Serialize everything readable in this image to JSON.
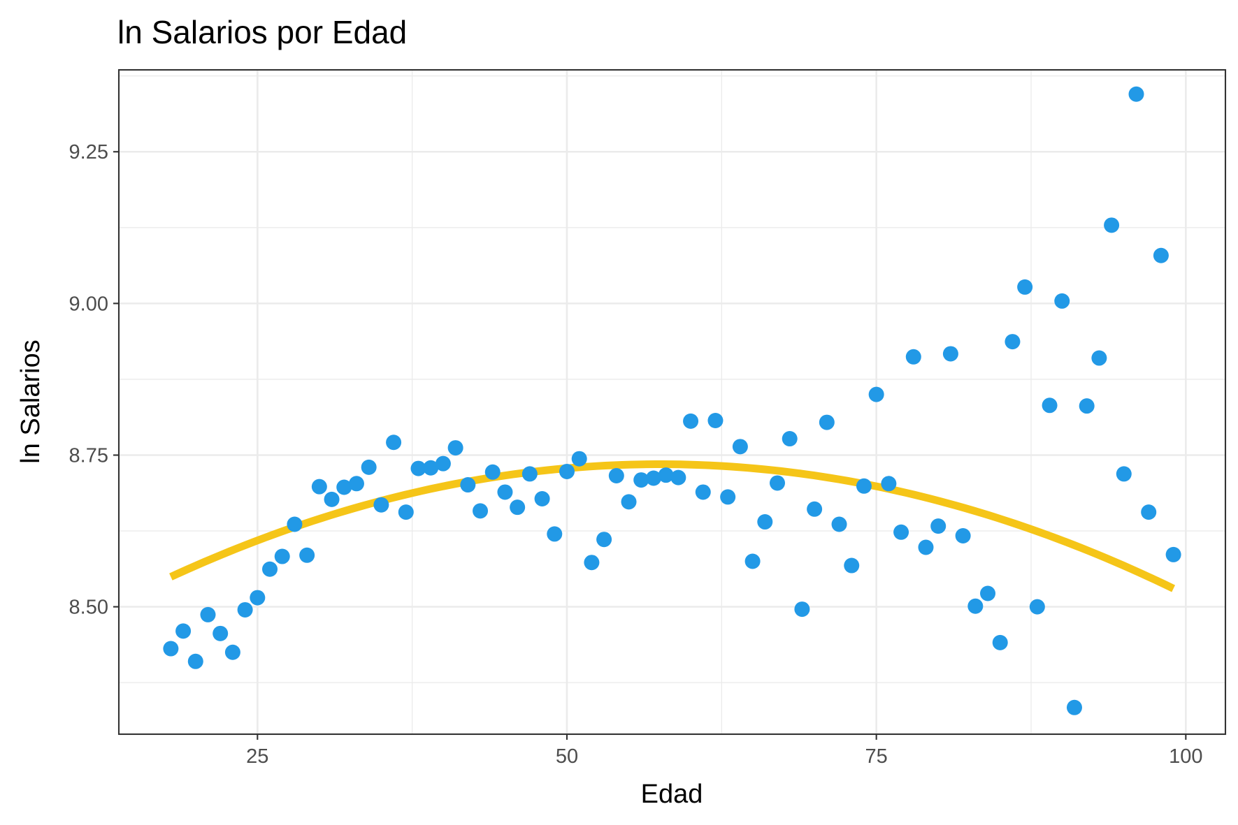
{
  "chart_data": {
    "type": "scatter",
    "title": "ln Salarios por Edad",
    "xlabel": "Edad",
    "ylabel": "ln Salarios",
    "xlim": [
      13.8,
      103.2
    ],
    "ylim": [
      8.29,
      9.385
    ],
    "xticks": [
      25,
      50,
      75,
      100
    ],
    "xtick_labels": [
      "25",
      "50",
      "75",
      "100"
    ],
    "yticks": [
      8.5,
      8.75,
      9.0,
      9.25
    ],
    "ytick_labels": [
      "8.50",
      "8.75",
      "9.00",
      "9.25"
    ],
    "grid": true,
    "colors": {
      "points": "#2299e6",
      "curve": "#f5c518"
    },
    "series": [
      {
        "type": "scatter",
        "x": [
          18,
          19,
          20,
          21,
          22,
          23,
          24,
          25,
          26,
          27,
          28,
          29,
          30,
          31,
          32,
          33,
          34,
          35,
          36,
          37,
          38,
          39,
          40,
          41,
          42,
          43,
          44,
          45,
          46,
          47,
          48,
          49,
          50,
          51,
          52,
          53,
          54,
          55,
          56,
          57,
          58,
          59,
          60,
          61,
          62,
          63,
          64,
          65,
          66,
          67,
          68,
          69,
          70,
          71,
          72,
          73,
          74,
          75,
          76,
          77,
          78,
          79,
          80,
          81,
          82,
          83,
          84,
          85,
          86,
          87,
          88,
          89,
          90,
          91,
          92,
          93,
          94,
          95,
          96,
          97,
          98,
          99
        ],
        "y": [
          8.431,
          8.46,
          8.41,
          8.487,
          8.456,
          8.425,
          8.495,
          8.515,
          8.562,
          8.583,
          8.636,
          8.585,
          8.698,
          8.677,
          8.697,
          8.703,
          8.73,
          8.668,
          8.771,
          8.656,
          8.728,
          8.729,
          8.736,
          8.762,
          8.701,
          8.658,
          8.722,
          8.689,
          8.664,
          8.719,
          8.678,
          8.62,
          8.723,
          8.744,
          8.573,
          8.611,
          8.716,
          8.673,
          8.709,
          8.712,
          8.717,
          8.713,
          8.806,
          8.689,
          8.807,
          8.681,
          8.764,
          8.575,
          8.64,
          8.704,
          8.777,
          8.496,
          8.661,
          8.804,
          8.636,
          8.568,
          8.699,
          8.85,
          8.703,
          8.623,
          8.912,
          8.598,
          8.633,
          8.917,
          8.617,
          8.501,
          8.522,
          8.441,
          8.937,
          9.027,
          8.5,
          8.832,
          9.004,
          8.334,
          8.831,
          8.91,
          9.129,
          8.719,
          9.345,
          8.656,
          9.079,
          8.586
        ]
      },
      {
        "type": "line",
        "quadratic_fit": {
          "vertex_x": 57.5,
          "vertex_y": 8.735,
          "a": -0.000119
        },
        "x_range": [
          18,
          99
        ]
      }
    ]
  }
}
